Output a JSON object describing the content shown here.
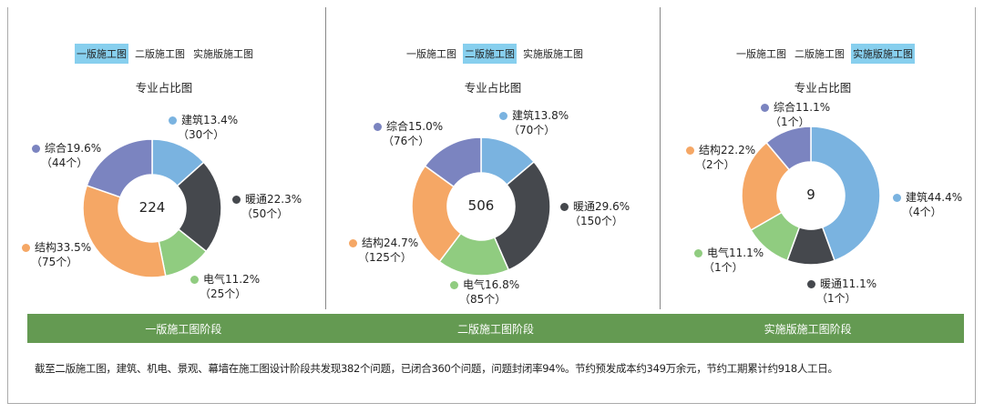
{
  "tabs": [
    "一版施工图",
    "二版施工图",
    "实施版施工图"
  ],
  "colors": {
    "建筑": "#7ab3e0",
    "暖通": "#45484d",
    "电气": "#90cc80",
    "结构": "#f5a765",
    "综合": "#7b84c0",
    "tab_active": "#87cfee",
    "stage_bar": "#649a52"
  },
  "chart_data": [
    {
      "type": "pie",
      "donut": true,
      "title": "专业占比图",
      "active_tab": 0,
      "total": "224",
      "slices": [
        {
          "name": "建筑",
          "percent": "13.4%",
          "count": "（30个）",
          "value": 30
        },
        {
          "name": "暖通",
          "percent": "22.3%",
          "count": "（50个）",
          "value": 50
        },
        {
          "name": "电气",
          "percent": "11.2%",
          "count": "（25个）",
          "value": 25
        },
        {
          "name": "结构",
          "percent": "33.5%",
          "count": "（75个）",
          "value": 75
        },
        {
          "name": "综合",
          "percent": "19.6%",
          "count": "（44个）",
          "value": 44
        }
      ]
    },
    {
      "type": "pie",
      "donut": true,
      "title": "专业占比图",
      "active_tab": 1,
      "total": "506",
      "slices": [
        {
          "name": "建筑",
          "percent": "13.8%",
          "count": "（70个）",
          "value": 70
        },
        {
          "name": "暖通",
          "percent": "29.6%",
          "count": "（150个）",
          "value": 150
        },
        {
          "name": "电气",
          "percent": "16.8%",
          "count": "（85个）",
          "value": 85
        },
        {
          "name": "结构",
          "percent": "24.7%",
          "count": "（125个）",
          "value": 125
        },
        {
          "name": "综合",
          "percent": "15.0%",
          "count": "（76个）",
          "value": 76
        }
      ]
    },
    {
      "type": "pie",
      "donut": true,
      "title": "专业占比图",
      "active_tab": 2,
      "total": "9",
      "slices": [
        {
          "name": "建筑",
          "percent": "44.4%",
          "count": "（4个）",
          "value": 4
        },
        {
          "name": "暖通",
          "percent": "11.1%",
          "count": "（1个）",
          "value": 1
        },
        {
          "name": "电气",
          "percent": "11.1%",
          "count": "（1个）",
          "value": 1
        },
        {
          "name": "结构",
          "percent": "22.2%",
          "count": "（2个）",
          "value": 2
        },
        {
          "name": "综合",
          "percent": "11.1%",
          "count": "（1个）",
          "value": 1
        }
      ]
    }
  ],
  "stages": [
    "一版施工图阶段",
    "二版施工图阶段",
    "实施版施工图阶段"
  ],
  "note": "截至二版施工图，建筑、机电、景观、幕墙在施工图设计阶段共发现382个问题，已闭合360个问题，问题封闭率94%。节约预发成本约349万余元，节约工期累计约918人工日。"
}
